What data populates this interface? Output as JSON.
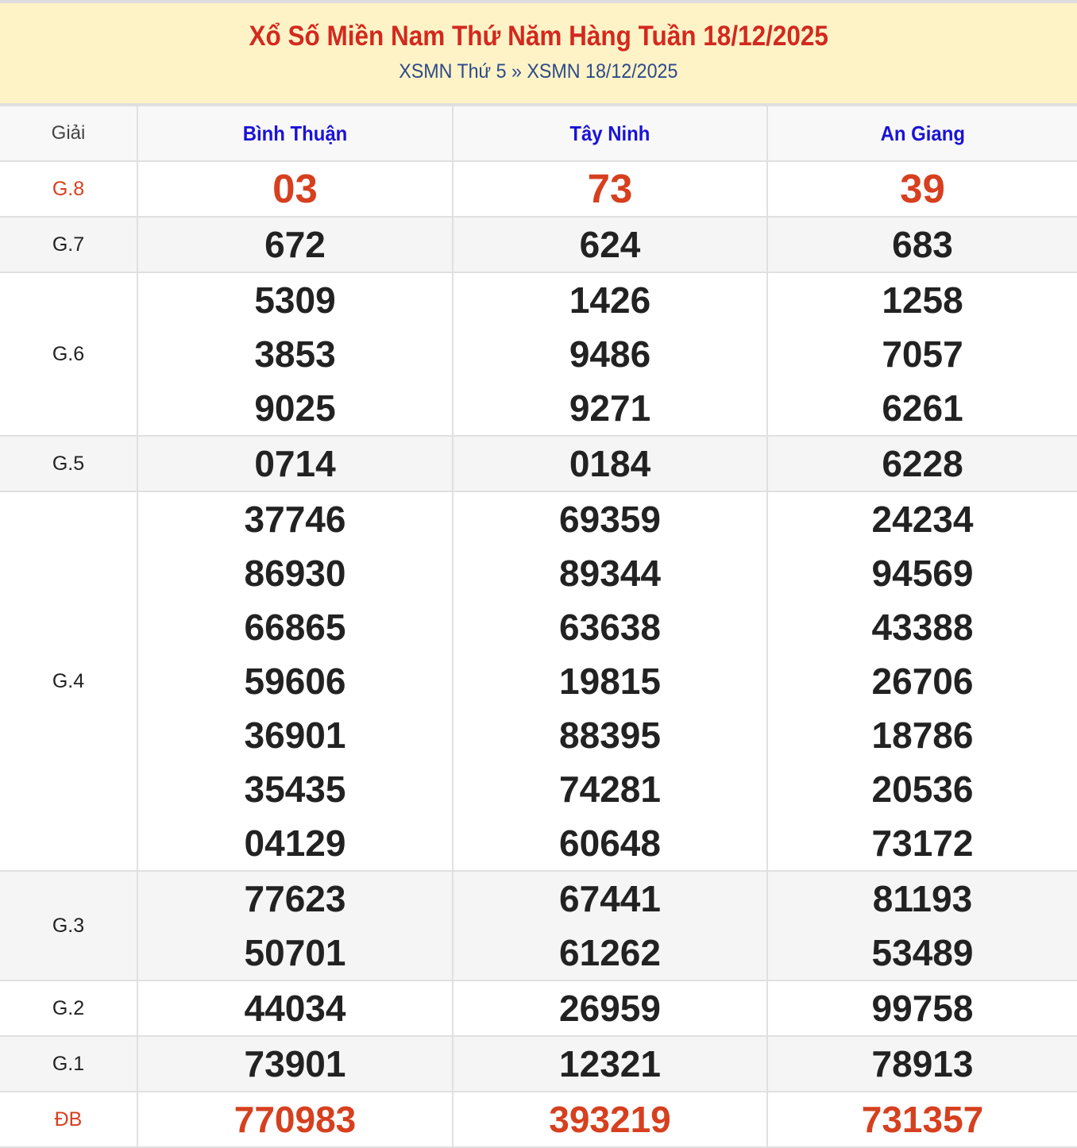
{
  "header": {
    "title": "Xổ Số Miền Nam Thứ Năm Hàng Tuần 18/12/2025",
    "breadcrumb": [
      {
        "label": "XSMN Thứ 5"
      },
      {
        "label": "XSMN 18/12/2025"
      }
    ],
    "separator": "»"
  },
  "table": {
    "label_header": "Giải",
    "provinces": [
      "Bình Thuận",
      "Tây Ninh",
      "An Giang"
    ],
    "rows": [
      {
        "label": "G.8",
        "values": [
          [
            "03"
          ],
          [
            "73"
          ],
          [
            "39"
          ]
        ]
      },
      {
        "label": "G.7",
        "values": [
          [
            "672"
          ],
          [
            "624"
          ],
          [
            "683"
          ]
        ]
      },
      {
        "label": "G.6",
        "values": [
          [
            "5309",
            "3853",
            "9025"
          ],
          [
            "1426",
            "9486",
            "9271"
          ],
          [
            "1258",
            "7057",
            "6261"
          ]
        ]
      },
      {
        "label": "G.5",
        "values": [
          [
            "0714"
          ],
          [
            "0184"
          ],
          [
            "6228"
          ]
        ]
      },
      {
        "label": "G.4",
        "values": [
          [
            "37746",
            "86930",
            "66865",
            "59606",
            "36901",
            "35435",
            "04129"
          ],
          [
            "69359",
            "89344",
            "63638",
            "19815",
            "88395",
            "74281",
            "60648"
          ],
          [
            "24234",
            "94569",
            "43388",
            "26706",
            "18786",
            "20536",
            "73172"
          ]
        ]
      },
      {
        "label": "G.3",
        "values": [
          [
            "77623",
            "50701"
          ],
          [
            "67441",
            "61262"
          ],
          [
            "81193",
            "53489"
          ]
        ]
      },
      {
        "label": "G.2",
        "values": [
          [
            "44034"
          ],
          [
            "26959"
          ],
          [
            "99758"
          ]
        ]
      },
      {
        "label": "G.1",
        "values": [
          [
            "73901"
          ],
          [
            "12321"
          ],
          [
            "78913"
          ]
        ]
      },
      {
        "label": "ĐB",
        "values": [
          [
            "770983"
          ],
          [
            "393219"
          ],
          [
            "731357"
          ]
        ]
      }
    ]
  },
  "colors": {
    "title": "#d3291f",
    "province": "#1a12d6",
    "highlight": "#d6401f",
    "header_bg": "#fef3c6"
  }
}
